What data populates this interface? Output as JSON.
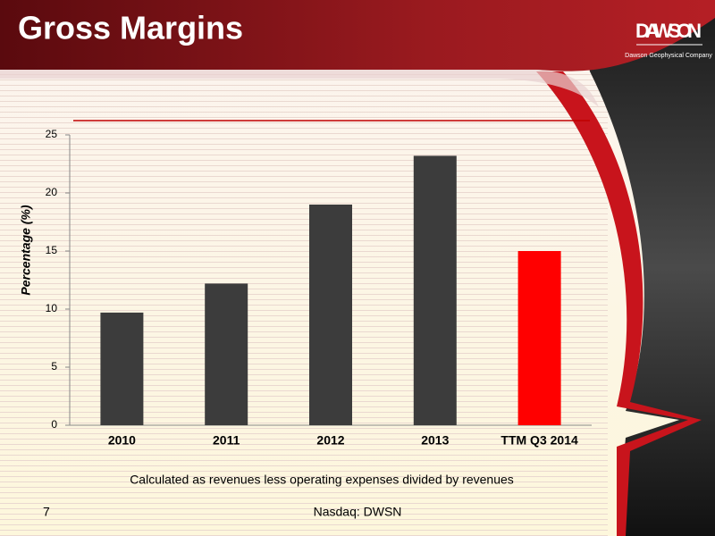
{
  "slide": {
    "title": "Gross Margins",
    "logo": "DAWSON",
    "company": "Dawson Geophysical Company",
    "page": "7",
    "ticker": "Nasdaq: DWSN"
  },
  "chart_data": {
    "type": "bar",
    "y_label": "Percentage (%)",
    "note": "Calculated as revenues less operating expenses divided by revenues",
    "categories": [
      "2010",
      "2011",
      "2012",
      "2013",
      "TTM Q3 2014"
    ],
    "values": [
      9.7,
      12.2,
      19.0,
      23.2,
      15.0
    ],
    "colors": [
      "#3c3c3c",
      "#3c3c3c",
      "#3c3c3c",
      "#3c3c3c",
      "#ff0000"
    ],
    "ylim": [
      0,
      25
    ],
    "yticks": [
      0,
      5,
      10,
      15,
      20,
      25
    ],
    "grid": false
  }
}
